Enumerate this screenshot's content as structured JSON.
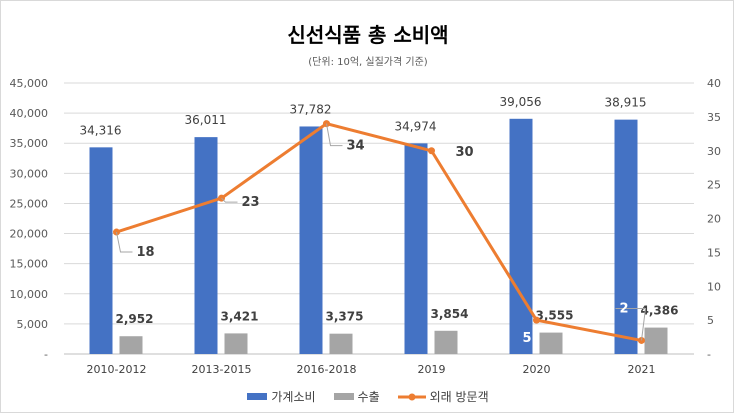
{
  "chart_data": {
    "type": "bar",
    "title": "신선식품 총 소비액",
    "subtitle": "(단위: 10억, 실질가격 기준)",
    "categories": [
      "2010-2012",
      "2013-2015",
      "2016-2018",
      "2019",
      "2020",
      "2021"
    ],
    "y_left": {
      "range": [
        0,
        45000
      ],
      "ticks": [
        "-",
        "5,000",
        "10,000",
        "15,000",
        "20,000",
        "25,000",
        "30,000",
        "35,000",
        "40,000",
        "45,000"
      ]
    },
    "y_right": {
      "range": [
        0,
        40
      ],
      "ticks": [
        "-",
        "5",
        "10",
        "15",
        "20",
        "25",
        "30",
        "35",
        "40"
      ]
    },
    "series": [
      {
        "name": "가계소비",
        "type": "bar",
        "axis": "left",
        "color": "#4472C4",
        "values": [
          34316,
          36011,
          37782,
          34974,
          39056,
          38915
        ],
        "labels": [
          "34,316",
          "36,011",
          "37,782",
          "34,974",
          "39,056",
          "38,915"
        ]
      },
      {
        "name": "수출",
        "type": "bar",
        "axis": "left",
        "color": "#A5A5A5",
        "values": [
          2952,
          3421,
          3375,
          3854,
          3555,
          4386
        ],
        "labels": [
          "2,952",
          "3,421",
          "3,375",
          "3,854",
          "3,555",
          "4,386"
        ]
      },
      {
        "name": "외래 방문객",
        "type": "line",
        "axis": "right",
        "color": "#ED7D31",
        "values": [
          18,
          23,
          34,
          30,
          5,
          2
        ],
        "labels": [
          "18",
          "23",
          "34",
          "30",
          "5",
          "2"
        ]
      }
    ],
    "grid": true,
    "legend_position": "bottom"
  }
}
